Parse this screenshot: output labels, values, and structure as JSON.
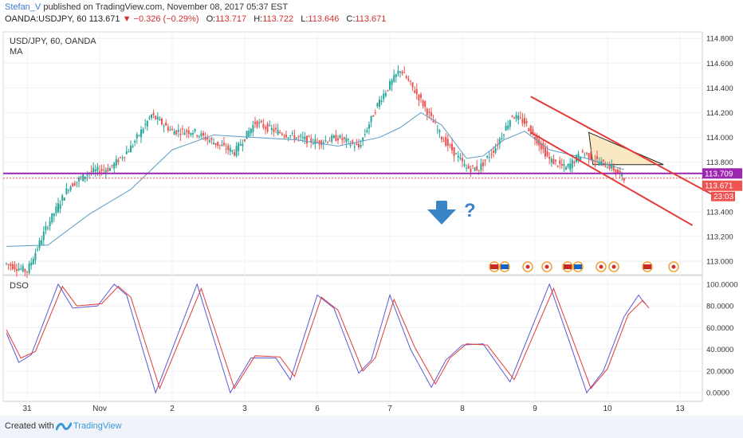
{
  "header": {
    "author": "Stefan_V",
    "published": "published on TradingView.com, November 08, 2017 05:37 EST",
    "symbol_line": "OANDA:USDJPY, 60",
    "last": "113.671",
    "change": "−0.326 (−0.29%)",
    "o_label": "O:",
    "o": "113.717",
    "h_label": "H:",
    "h": "113.722",
    "l_label": "L:",
    "l": "113.646",
    "c_label": "C:",
    "c": "113.671"
  },
  "pane_labels": {
    "main_title": "USD/JPY, 60, OANDA",
    "ma": "MA",
    "dso": "DSO"
  },
  "price_tags": {
    "level": "113.709",
    "last": "113.671",
    "timer": "23:03"
  },
  "annotations": {
    "question": "?"
  },
  "footer": {
    "created": "Created with",
    "brand": "TradingView"
  },
  "colors": {
    "bull": "#26a69a",
    "bear": "#ef5350",
    "ma": "#5d9cc0",
    "channel": "#e53935",
    "level": "#9c27b0",
    "arrow": "#3a85c8",
    "dso_k": "#5b5bd6",
    "dso_d": "#e53935",
    "triangle_fill": "#f9e4b7"
  },
  "chart_data": [
    {
      "type": "candlestick",
      "title": "USD/JPY, 60, OANDA",
      "x_ticks": [
        "31",
        "Nov",
        "2",
        "3",
        "6",
        "7",
        "8",
        "9",
        "10",
        "13"
      ],
      "y_ticks": [
        "113.000",
        "113.200",
        "113.400",
        "113.600",
        "113.800",
        "114.000",
        "114.200",
        "114.400",
        "114.600",
        "114.800"
      ],
      "ylim": [
        112.91,
        114.84
      ],
      "series": [
        {
          "name": "Candles",
          "anchors": [
            [
              0,
              112.98
            ],
            [
              10,
              112.92
            ],
            [
              20,
              113.3
            ],
            [
              30,
              113.6
            ],
            [
              40,
              113.72
            ],
            [
              50,
              113.75
            ],
            [
              60,
              113.92
            ],
            [
              70,
              114.18
            ],
            [
              80,
              114.05
            ],
            [
              90,
              114.05
            ],
            [
              100,
              113.96
            ],
            [
              110,
              113.88
            ],
            [
              120,
              114.12
            ],
            [
              130,
              114.05
            ],
            [
              140,
              114.0
            ],
            [
              150,
              113.96
            ],
            [
              160,
              114.0
            ],
            [
              170,
              113.92
            ],
            [
              180,
              114.3
            ],
            [
              190,
              114.55
            ],
            [
              200,
              114.3
            ],
            [
              210,
              114.0
            ],
            [
              215,
              113.9
            ],
            [
              222,
              113.75
            ],
            [
              228,
              113.75
            ],
            [
              236,
              113.92
            ],
            [
              244,
              114.18
            ],
            [
              250,
              114.12
            ],
            [
              256,
              113.98
            ],
            [
              262,
              113.82
            ],
            [
              270,
              113.75
            ],
            [
              278,
              113.88
            ],
            [
              286,
              113.8
            ],
            [
              292,
              113.76
            ],
            [
              298,
              113.66
            ]
          ]
        }
      ],
      "ma": [
        [
          0,
          113.12
        ],
        [
          20,
          113.13
        ],
        [
          40,
          113.38
        ],
        [
          60,
          113.58
        ],
        [
          80,
          113.9
        ],
        [
          100,
          114.02
        ],
        [
          120,
          114.0
        ],
        [
          140,
          113.98
        ],
        [
          160,
          113.93
        ],
        [
          180,
          114.0
        ],
        [
          190,
          114.08
        ],
        [
          200,
          114.2
        ],
        [
          210,
          114.1
        ],
        [
          222,
          113.83
        ],
        [
          230,
          113.85
        ],
        [
          240,
          113.98
        ],
        [
          250,
          114.05
        ],
        [
          262,
          113.9
        ],
        [
          280,
          113.83
        ],
        [
          298,
          113.74
        ]
      ],
      "lines": {
        "support_level": 113.709,
        "last_price": 113.671,
        "channel_upper": [
          [
            253,
            114.33
          ],
          [
            346,
            113.49
          ]
        ],
        "channel_lower": [
          [
            253,
            114.04
          ],
          [
            331,
            113.29
          ]
        ]
      },
      "triangle": [
        [
          281,
          114.04
        ],
        [
          283,
          113.78
        ],
        [
          317,
          113.78
        ]
      ]
    },
    {
      "type": "line",
      "title": "DSO",
      "ylim": [
        -5,
        105
      ],
      "y_ticks": [
        "0.0000",
        "20.0000",
        "40.0000",
        "60.0000",
        "80.0000",
        "100.0000"
      ],
      "series": [
        {
          "name": "K",
          "points": [
            [
              0,
              55
            ],
            [
              6,
              28
            ],
            [
              12,
              35
            ],
            [
              25,
              100
            ],
            [
              32,
              78
            ],
            [
              44,
              80
            ],
            [
              52,
              100
            ],
            [
              58,
              90
            ],
            [
              72,
              0
            ],
            [
              92,
              100
            ],
            [
              108,
              0
            ],
            [
              118,
              32
            ],
            [
              130,
              32
            ],
            [
              137,
              12
            ],
            [
              150,
              90
            ],
            [
              158,
              78
            ],
            [
              170,
              18
            ],
            [
              176,
              30
            ],
            [
              185,
              90
            ],
            [
              195,
              40
            ],
            [
              205,
              5
            ],
            [
              212,
              30
            ],
            [
              220,
              44
            ],
            [
              230,
              45
            ],
            [
              243,
              10
            ],
            [
              262,
              100
            ],
            [
              272,
              45
            ],
            [
              280,
              0
            ],
            [
              288,
              20
            ],
            [
              298,
              70
            ],
            [
              305,
              90
            ],
            [
              308,
              82
            ]
          ]
        },
        {
          "name": "D",
          "points": [
            [
              0,
              58
            ],
            [
              7,
              32
            ],
            [
              14,
              38
            ],
            [
              27,
              98
            ],
            [
              34,
              80
            ],
            [
              46,
              82
            ],
            [
              54,
              98
            ],
            [
              60,
              88
            ],
            [
              74,
              4
            ],
            [
              94,
              96
            ],
            [
              110,
              4
            ],
            [
              120,
              34
            ],
            [
              132,
              33
            ],
            [
              139,
              15
            ],
            [
              152,
              88
            ],
            [
              160,
              76
            ],
            [
              172,
              20
            ],
            [
              178,
              32
            ],
            [
              187,
              86
            ],
            [
              197,
              42
            ],
            [
              207,
              8
            ],
            [
              214,
              32
            ],
            [
              222,
              45
            ],
            [
              232,
              44
            ],
            [
              245,
              12
            ],
            [
              264,
              96
            ],
            [
              274,
              45
            ],
            [
              282,
              4
            ],
            [
              290,
              22
            ],
            [
              300,
              72
            ],
            [
              307,
              85
            ],
            [
              310,
              78
            ]
          ]
        }
      ]
    }
  ]
}
